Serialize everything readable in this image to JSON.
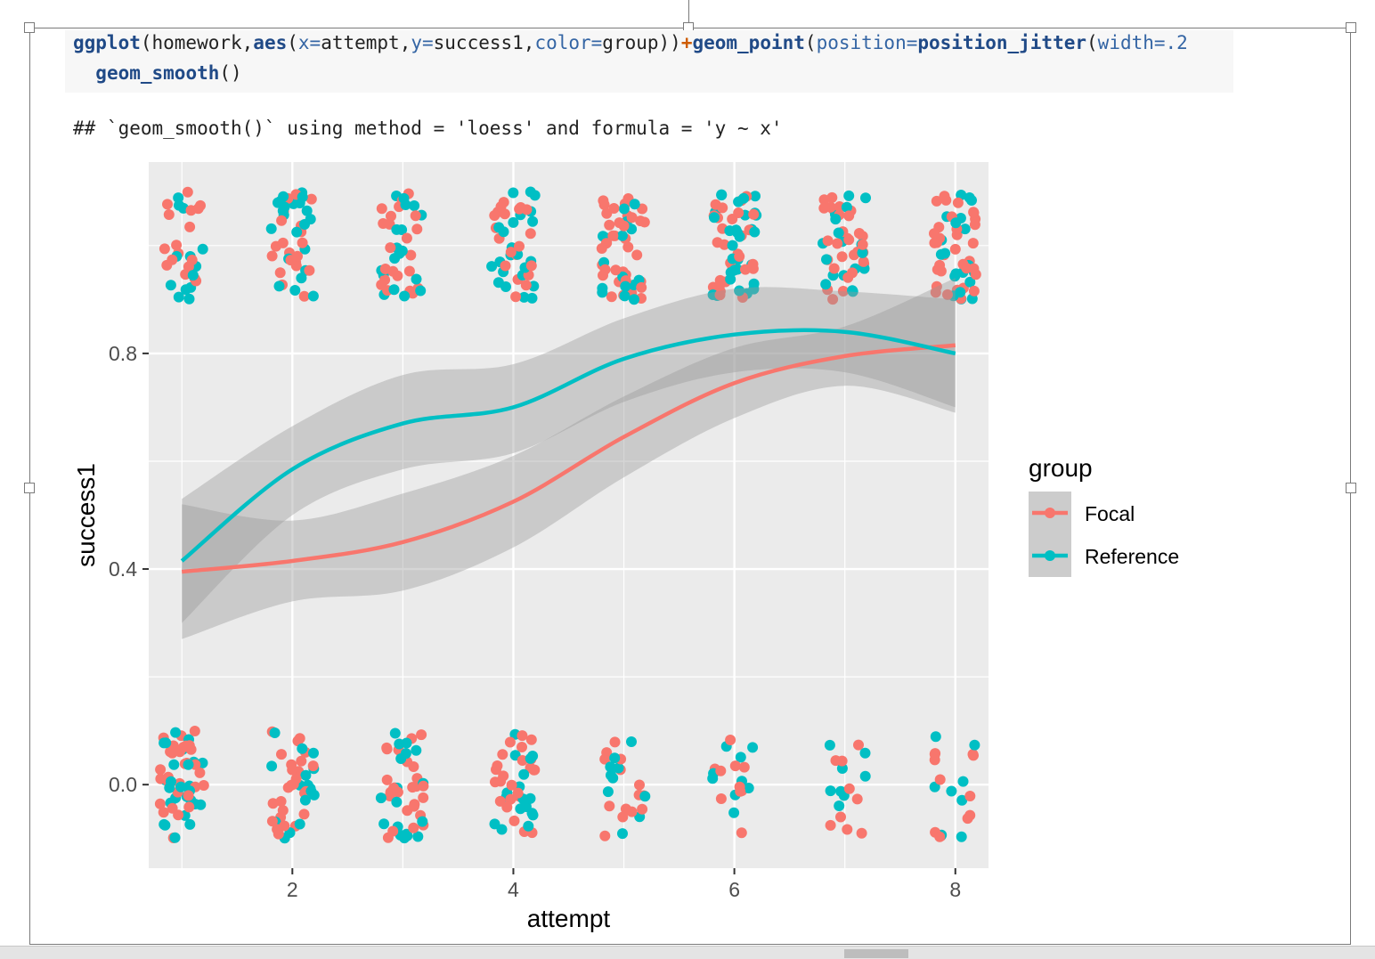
{
  "code": {
    "line1": [
      {
        "t": "ggplot",
        "c": "fn"
      },
      {
        "t": "(homework,",
        "c": "plain"
      },
      {
        "t": "aes",
        "c": "fn"
      },
      {
        "t": "(",
        "c": "plain"
      },
      {
        "t": "x=",
        "c": "arg"
      },
      {
        "t": "attempt,",
        "c": "plain"
      },
      {
        "t": "y=",
        "c": "arg"
      },
      {
        "t": "success1,",
        "c": "plain"
      },
      {
        "t": "color=",
        "c": "arg"
      },
      {
        "t": "group))",
        "c": "plain"
      },
      {
        "t": "+",
        "c": "op"
      },
      {
        "t": "geom_point",
        "c": "fn"
      },
      {
        "t": "(",
        "c": "plain"
      },
      {
        "t": "position=",
        "c": "arg"
      },
      {
        "t": "position_jitter",
        "c": "fn"
      },
      {
        "t": "(",
        "c": "plain"
      },
      {
        "t": "width=",
        "c": "arg"
      },
      {
        "t": ".2",
        "c": "arg"
      }
    ],
    "line2": [
      {
        "t": "  ",
        "c": "plain"
      },
      {
        "t": "geom_smooth",
        "c": "fn"
      },
      {
        "t": "()",
        "c": "plain"
      }
    ]
  },
  "message": "## `geom_smooth()` using method = 'loess' and formula = 'y ~ x'",
  "colors": {
    "focal": "#F8766D",
    "reference": "#00BFC4",
    "panel": "#EBEBEB",
    "band": "#999999"
  },
  "chart_data": {
    "type": "scatter",
    "xlabel": "attempt",
    "ylabel": "success1",
    "xlim": [
      0.7,
      8.3
    ],
    "ylim": [
      -0.155,
      1.155
    ],
    "x_ticks": [
      2,
      4,
      6,
      8
    ],
    "x_tick_labels": [
      "2",
      "4",
      "6",
      "8"
    ],
    "y_ticks": [
      0.0,
      0.4,
      0.8
    ],
    "y_tick_labels": [
      "0.0",
      "0.4",
      "0.8"
    ],
    "jitter": 0.2,
    "grid": true,
    "legend": {
      "title": "group",
      "position": "right",
      "entries": [
        "Focal",
        "Reference"
      ]
    },
    "points_per_attempt": {
      "attempt": [
        1,
        2,
        3,
        4,
        5,
        6,
        7,
        8
      ],
      "focal_success": [
        18,
        20,
        22,
        20,
        36,
        28,
        30,
        34
      ],
      "reference_success": [
        14,
        22,
        18,
        24,
        16,
        30,
        18,
        20
      ],
      "focal_fail": [
        30,
        26,
        26,
        24,
        14,
        10,
        9,
        12
      ],
      "reference_fail": [
        26,
        16,
        18,
        18,
        10,
        9,
        8,
        8
      ]
    },
    "series": [
      {
        "name": "Focal",
        "x": [
          1,
          2,
          3,
          4,
          5,
          6,
          7,
          8
        ],
        "y": [
          0.395,
          0.415,
          0.45,
          0.525,
          0.645,
          0.745,
          0.795,
          0.815
        ],
        "ymin": [
          0.27,
          0.34,
          0.36,
          0.44,
          0.57,
          0.68,
          0.74,
          0.69
        ],
        "ymax": [
          0.52,
          0.49,
          0.54,
          0.61,
          0.72,
          0.81,
          0.85,
          0.94
        ]
      },
      {
        "name": "Reference",
        "x": [
          1,
          2,
          3,
          4,
          5,
          6,
          7,
          8
        ],
        "y": [
          0.415,
          0.585,
          0.67,
          0.7,
          0.79,
          0.835,
          0.84,
          0.8
        ],
        "ymin": [
          0.3,
          0.5,
          0.585,
          0.615,
          0.71,
          0.765,
          0.765,
          0.7
        ],
        "ymax": [
          0.53,
          0.665,
          0.76,
          0.78,
          0.865,
          0.92,
          0.915,
          0.9
        ]
      }
    ]
  }
}
